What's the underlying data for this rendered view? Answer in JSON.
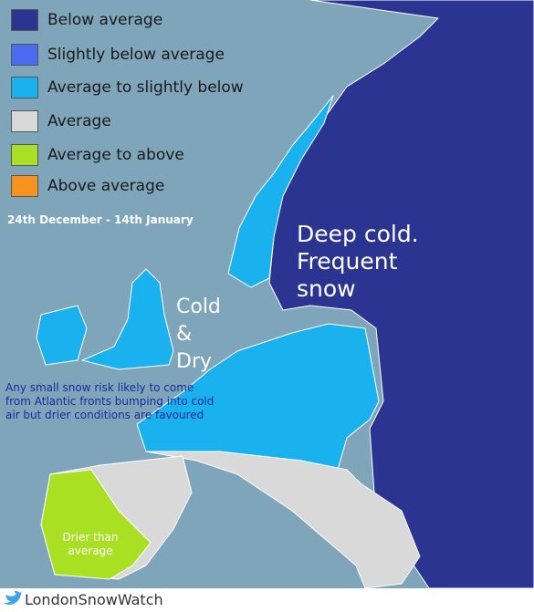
{
  "legend": [
    {
      "label": "Below average",
      "color": "#2b3591"
    },
    {
      "label": "Slightly below average",
      "color": "#4a6cf0"
    },
    {
      "label": "Average to slightly below",
      "color": "#19b2ee"
    },
    {
      "label": "Average",
      "color": "#d9d9d9"
    },
    {
      "label": "Average to above",
      "color": "#a9e024"
    },
    {
      "label": "Above average",
      "color": "#f7921e"
    }
  ],
  "date_range": "24th December - 14th January",
  "annotations": {
    "east": "Deep cold. Frequent snow",
    "central": "Cold & Dry",
    "atlantic": "Any small snow risk likely to come from Atlantic fronts bumping into cold air but drier conditions are favoured",
    "iberia": "Drier than average"
  },
  "footer": "LondonSnowWatch"
}
